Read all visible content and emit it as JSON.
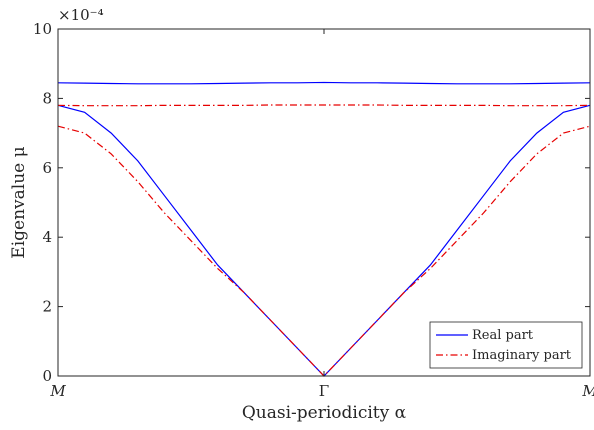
{
  "chart_data": {
    "type": "line",
    "title": "",
    "xlabel": "Quasi-periodicity α",
    "ylabel": "Eigenvalue μ",
    "exponent_label": "×10⁻⁴",
    "x_tick_labels": [
      "M",
      "Γ",
      "M"
    ],
    "y_ticks": [
      0,
      2,
      4,
      6,
      8,
      10
    ],
    "y_tick_labels": [
      "0",
      "2",
      "4",
      "6",
      "8",
      "10"
    ],
    "ylim": [
      0,
      10
    ],
    "grid": false,
    "legend_position": "bottom-right",
    "x": [
      0,
      0.1,
      0.2,
      0.3,
      0.4,
      0.5,
      0.6,
      0.7,
      0.8,
      0.9,
      1.0,
      1.1,
      1.2,
      1.3,
      1.4,
      1.5,
      1.6,
      1.7,
      1.8,
      1.9,
      2.0
    ],
    "series": [
      {
        "name": "Real part",
        "color": "#0000ff",
        "dash": "solid",
        "values": [
          7.8,
          7.6,
          7.0,
          6.2,
          5.2,
          4.2,
          3.2,
          2.4,
          1.6,
          0.8,
          0.0,
          0.8,
          1.6,
          2.4,
          3.2,
          4.2,
          5.2,
          6.2,
          7.0,
          7.6,
          7.8
        ]
      },
      {
        "name": "",
        "color": "#0000ff",
        "dash": "solid",
        "values": [
          8.45,
          8.44,
          8.43,
          8.42,
          8.42,
          8.42,
          8.43,
          8.44,
          8.45,
          8.45,
          8.46,
          8.45,
          8.45,
          8.44,
          8.43,
          8.42,
          8.42,
          8.42,
          8.43,
          8.44,
          8.45
        ]
      },
      {
        "name": "Imaginary part",
        "color": "#e60000",
        "dash": "dashdot",
        "values": [
          7.2,
          7.0,
          6.4,
          5.6,
          4.7,
          3.9,
          3.1,
          2.4,
          1.6,
          0.8,
          0.0,
          0.8,
          1.6,
          2.4,
          3.1,
          3.9,
          4.7,
          5.6,
          6.4,
          7.0,
          7.2
        ]
      },
      {
        "name": "",
        "color": "#e60000",
        "dash": "dashdot",
        "values": [
          7.8,
          7.79,
          7.79,
          7.79,
          7.8,
          7.8,
          7.8,
          7.8,
          7.81,
          7.81,
          7.81,
          7.81,
          7.81,
          7.8,
          7.8,
          7.8,
          7.8,
          7.79,
          7.79,
          7.79,
          7.8
        ]
      }
    ]
  }
}
